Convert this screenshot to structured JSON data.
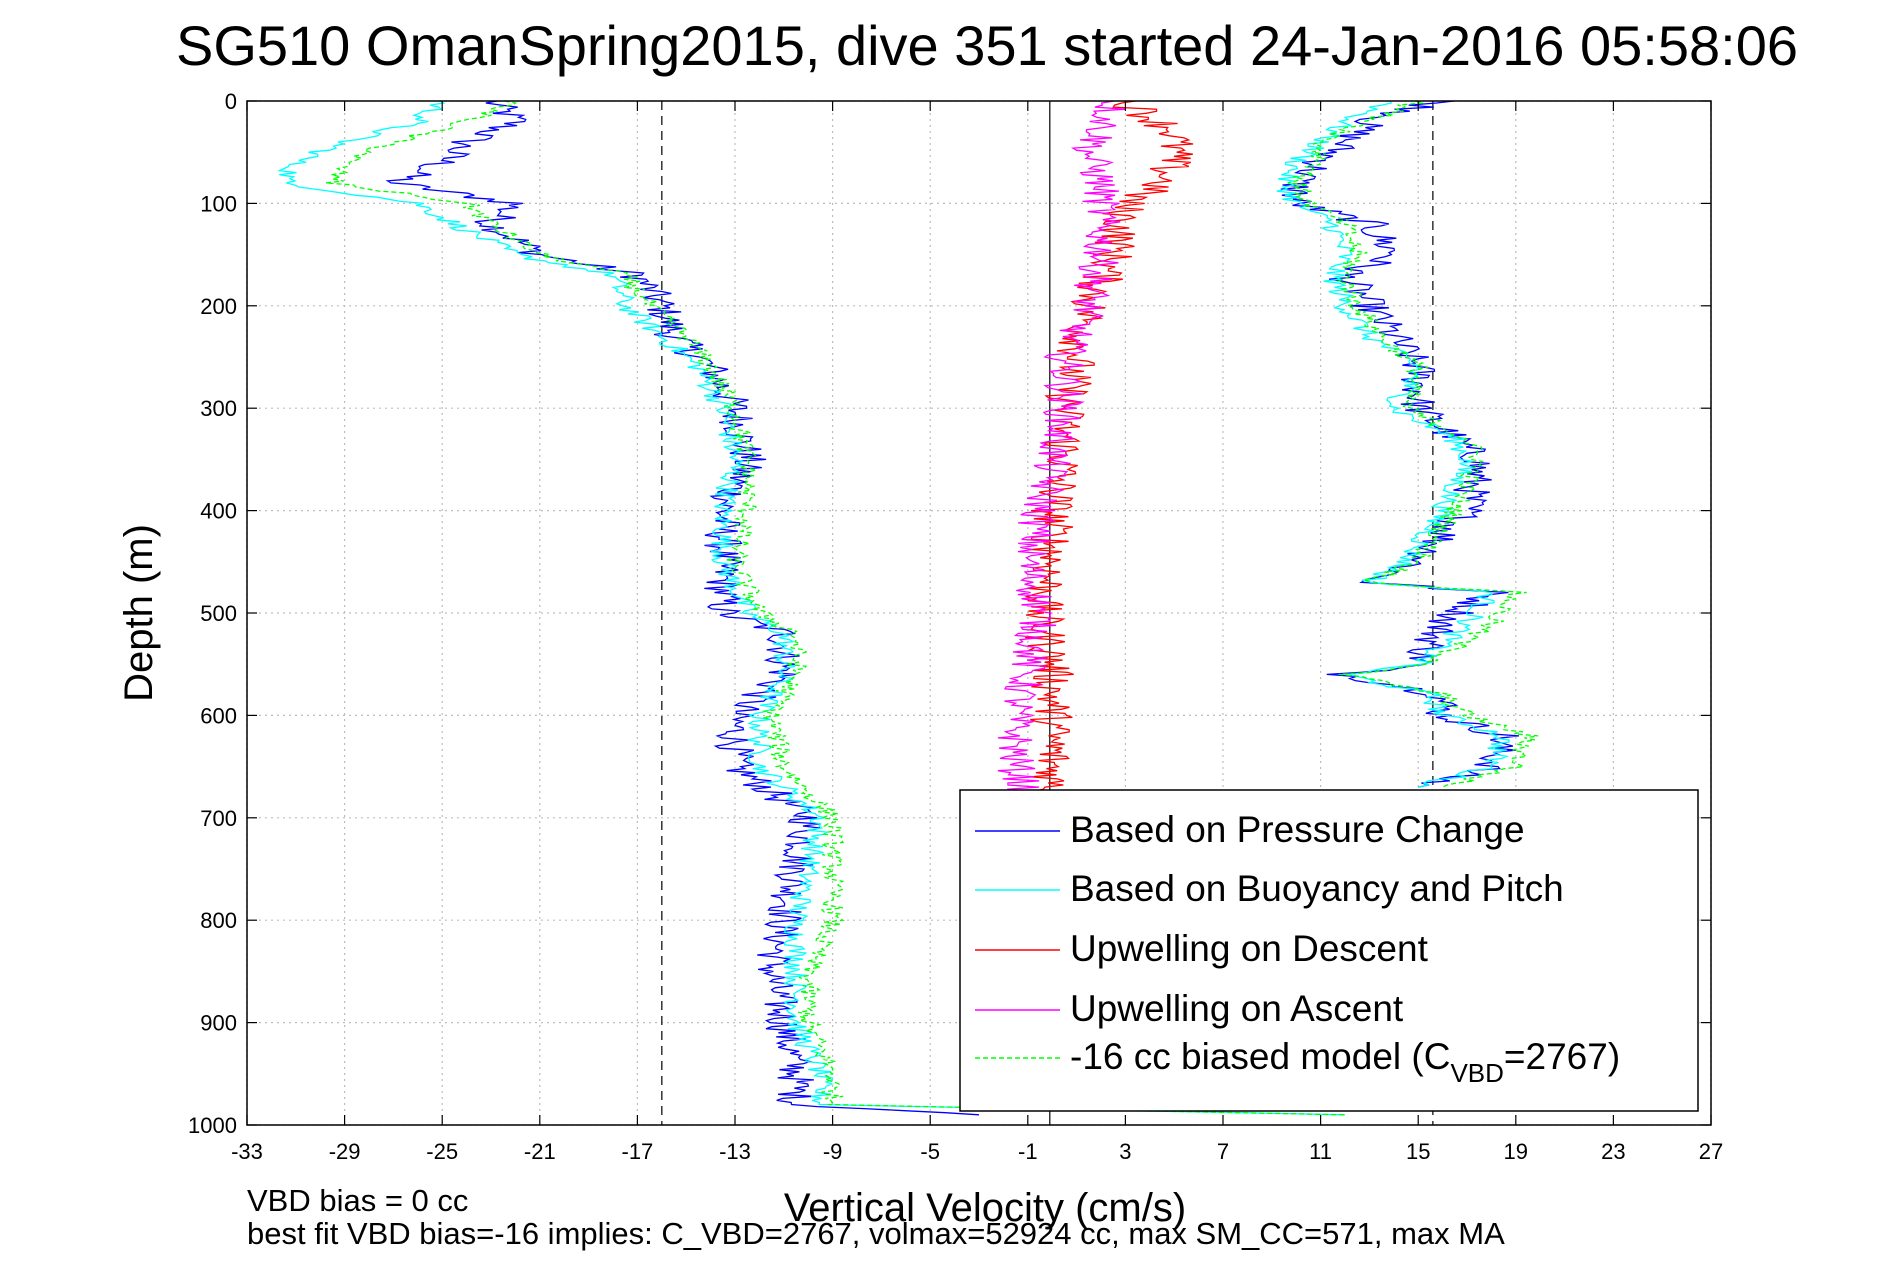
{
  "chart_data": {
    "type": "line",
    "title": "SG510 OmanSpring2015, dive 351 started 24-Jan-2016 05:58:06",
    "xlabel": "Vertical Velocity (cm/s)",
    "ylabel": "Depth (m)",
    "xlim": [
      -33,
      27
    ],
    "ylim": [
      0,
      1000
    ],
    "y_reversed": true,
    "grid": true,
    "x_ticks": [
      -33,
      -29,
      -25,
      -21,
      -17,
      -13,
      -9,
      -5,
      -1,
      3,
      7,
      11,
      15,
      19,
      23,
      27
    ],
    "y_ticks": [
      0,
      100,
      200,
      300,
      400,
      500,
      600,
      700,
      800,
      900,
      1000
    ],
    "reference_lines": [
      {
        "style": "dashed",
        "x": -16
      },
      {
        "style": "solid",
        "x": -0.1
      },
      {
        "style": "dashed",
        "x": 15.6
      }
    ],
    "legend_position": "bottom-right",
    "series": [
      {
        "name": "Based on Pressure Change",
        "color": "#0000ff",
        "style": "solid",
        "segments": [
          {
            "depth": [
              0,
              20,
              40,
              60,
              80,
              100,
              120,
              150,
              170,
              200,
              230,
              260,
              300,
              350,
              400,
              450,
              500,
              520,
              560,
              600,
              650,
              700,
              750,
              800,
              850,
              900,
              950,
              980,
              990
            ],
            "velocity": [
              -23,
              -22,
              -24,
              -25,
              -27,
              -22,
              -23,
              -21,
              -17,
              -16,
              -15.5,
              -14,
              -13,
              -12.5,
              -13.5,
              -13.5,
              -13.5,
              -11,
              -11,
              -13,
              -13,
              -10,
              -10.5,
              -11,
              -11.5,
              -11,
              -10.5,
              -10.5,
              -3
            ]
          },
          {
            "depth": [
              0,
              20,
              40,
              60,
              80,
              100,
              120,
              150,
              170,
              200,
              230,
              260,
              300,
              330,
              350,
              400,
              450,
              470,
              480,
              510,
              550,
              560,
              580,
              600,
              620,
              650,
              670
            ],
            "velocity": [
              16,
              13,
              12,
              11,
              10,
              10,
              13,
              14,
              12,
              13,
              14,
              15,
              15,
              16.5,
              17.5,
              17,
              15,
              13,
              18,
              16,
              15,
              12,
              16,
              16,
              18.5,
              18,
              15
            ]
          }
        ]
      },
      {
        "name": "Based on Buoyancy and Pitch",
        "color": "#00ffff",
        "style": "solid",
        "segments": [
          {
            "depth": [
              0,
              20,
              40,
              60,
              80,
              100,
              120,
              150,
              170,
              200,
              230,
              260,
              300,
              350,
              400,
              450,
              500,
              520,
              560,
              600,
              650,
              700,
              750,
              800,
              850,
              900,
              950,
              980,
              990
            ],
            "velocity": [
              -25,
              -26,
              -29,
              -31,
              -31.5,
              -26,
              -24.5,
              -22,
              -18,
              -17.5,
              -16,
              -14.5,
              -13.5,
              -13,
              -13.5,
              -13.5,
              -12.5,
              -11,
              -11,
              -12,
              -12,
              -9.5,
              -10,
              -10.5,
              -10.5,
              -10.5,
              -9.5,
              -9.5,
              12
            ]
          },
          {
            "depth": [
              0,
              20,
              40,
              60,
              80,
              100,
              120,
              150,
              170,
              200,
              230,
              260,
              300,
              330,
              350,
              400,
              450,
              470,
              480,
              510,
              550,
              560,
              580,
              600,
              620,
              650,
              670
            ],
            "velocity": [
              14,
              12,
              11,
              10,
              9.5,
              10,
              11.5,
              12,
              11.5,
              12,
              13,
              15,
              14,
              16.5,
              17,
              16,
              14.5,
              13,
              18,
              17,
              15,
              12,
              15.5,
              16,
              18.5,
              18,
              15
            ]
          }
        ]
      },
      {
        "name": "Upwelling on Descent",
        "color": "#ff0000",
        "style": "solid",
        "segments": [
          {
            "depth": [
              0,
              30,
              50,
              80,
              100,
              150,
              200,
              250,
              300,
              350,
              400,
              450,
              500,
              550,
              600,
              650,
              680
            ],
            "velocity": [
              3,
              5,
              5,
              4.5,
              3,
              2.5,
              1.5,
              1,
              0.5,
              0.5,
              0,
              0,
              -0.5,
              0,
              0,
              0,
              0
            ]
          }
        ]
      },
      {
        "name": "Upwelling on Ascent",
        "color": "#ff00ff",
        "style": "solid",
        "segments": [
          {
            "depth": [
              0,
              30,
              50,
              80,
              100,
              150,
              200,
              250,
              300,
              350,
              400,
              450,
              500,
              550,
              600,
              650,
              680
            ],
            "velocity": [
              2.5,
              2,
              1.5,
              2,
              2,
              2,
              1.5,
              0.5,
              0.5,
              0,
              -0.5,
              -1,
              -0.5,
              -1,
              -1.5,
              -1.5,
              -1
            ]
          }
        ]
      },
      {
        "name": "-16 cc biased model (C_VBD=2767)",
        "color": "#00ff00",
        "style": "dashed",
        "segments": [
          {
            "depth": [
              0,
              20,
              40,
              60,
              80,
              100,
              120,
              150,
              170,
              200,
              230,
              260,
              300,
              350,
              400,
              450,
              500,
              520,
              560,
              600,
              650,
              700,
              750,
              800,
              850,
              900,
              950,
              980,
              990
            ],
            "velocity": [
              -22,
              -24,
              -27,
              -29,
              -29.5,
              -24,
              -23,
              -21,
              -17.5,
              -16.5,
              -15,
              -14,
              -13,
              -12.5,
              -12.5,
              -13,
              -12,
              -10.5,
              -10.5,
              -11.5,
              -11,
              -9,
              -9,
              -9,
              -10,
              -10,
              -9,
              -9,
              12
            ]
          },
          {
            "depth": [
              0,
              20,
              40,
              60,
              80,
              100,
              120,
              150,
              170,
              200,
              230,
              260,
              300,
              330,
              350,
              400,
              450,
              470,
              480,
              510,
              550,
              560,
              580,
              600,
              620,
              650,
              670
            ],
            "velocity": [
              15,
              13,
              11,
              11,
              10,
              10.5,
              12,
              12.5,
              12,
              12.5,
              13.5,
              15,
              14.5,
              17,
              17.5,
              16.5,
              15,
              13,
              19,
              18,
              15.5,
              12,
              16,
              17,
              19.5,
              19,
              16
            ]
          }
        ]
      }
    ],
    "legend": {
      "line1": "Based on Pressure Change",
      "line2": "Based on Buoyancy and Pitch",
      "line3": "Upwelling on Descent",
      "line4": "Upwelling on Ascent",
      "line5_prefix": "-16 cc biased model (C",
      "line5_sub": "VBD",
      "line5_suffix": "=2767)"
    },
    "annotations": [
      "VBD bias = 0 cc",
      "best fit VBD bias=-16 implies: C_VBD=2767, volmax=52924 cc, max SM_CC=571, max MA"
    ]
  }
}
